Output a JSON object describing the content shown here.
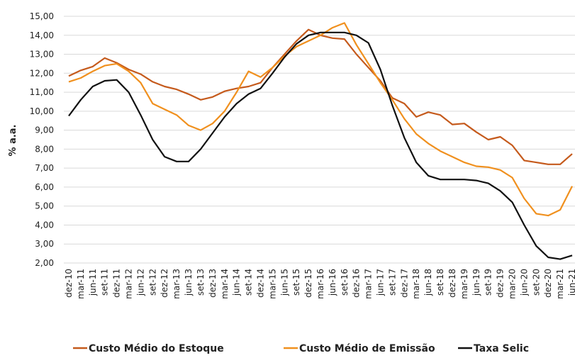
{
  "chart_data": {
    "type": "line",
    "y_label": "% a.a.",
    "categories": [
      "dez-10",
      "mar-11",
      "jun-11",
      "set-11",
      "dez-11",
      "mar-12",
      "jun-12",
      "set-12",
      "dez-12",
      "mar-13",
      "jun-13",
      "set-13",
      "dez-13",
      "mar-14",
      "jun-14",
      "set-14",
      "dez-14",
      "mar-15",
      "jun-15",
      "set-15",
      "dez-15",
      "mar-16",
      "jun-16",
      "set-16",
      "dez-16",
      "mar-17",
      "jun-17",
      "set-17",
      "dez-17",
      "mar-18",
      "jun-18",
      "set-18",
      "dez-18",
      "mar-19",
      "jun-19",
      "set-19",
      "dez-19",
      "mar-20",
      "jun-20",
      "set-20",
      "dez-20",
      "mar-21",
      "jun-21"
    ],
    "series": [
      {
        "name": "Custo Médio do Estoque",
        "color": "#c55a1c",
        "values": [
          11.85,
          12.15,
          12.35,
          12.8,
          12.55,
          12.2,
          11.95,
          11.55,
          11.3,
          11.15,
          10.9,
          10.6,
          10.75,
          11.05,
          11.2,
          11.3,
          11.5,
          12.3,
          13.0,
          13.7,
          14.3,
          14.0,
          13.85,
          13.8,
          13.0,
          12.3,
          11.6,
          10.7,
          10.4,
          9.7,
          9.95,
          9.8,
          9.3,
          9.35,
          8.9,
          8.5,
          8.65,
          8.2,
          7.4,
          7.3,
          7.2,
          7.2,
          7.75
        ]
      },
      {
        "name": "Custo Médio de Emissão",
        "color": "#f0901e",
        "values": [
          11.55,
          11.75,
          12.1,
          12.4,
          12.5,
          12.1,
          11.5,
          10.4,
          10.1,
          9.8,
          9.25,
          9.0,
          9.35,
          10.0,
          11.0,
          12.1,
          11.8,
          12.3,
          12.9,
          13.4,
          13.7,
          14.0,
          14.4,
          14.65,
          13.5,
          12.5,
          11.5,
          10.6,
          9.6,
          8.8,
          8.3,
          7.9,
          7.6,
          7.3,
          7.1,
          7.05,
          6.9,
          6.5,
          5.4,
          4.6,
          4.5,
          4.8,
          6.05
        ]
      },
      {
        "name": "Taxa Selic",
        "color": "#111111",
        "values": [
          9.75,
          10.6,
          11.3,
          11.6,
          11.65,
          11.0,
          9.8,
          8.5,
          7.6,
          7.35,
          7.35,
          8.0,
          8.85,
          9.7,
          10.4,
          10.9,
          11.2,
          12.0,
          12.85,
          13.55,
          14.0,
          14.15,
          14.15,
          14.15,
          14.0,
          13.6,
          12.2,
          10.3,
          8.6,
          7.3,
          6.6,
          6.4,
          6.4,
          6.4,
          6.35,
          6.2,
          5.8,
          5.2,
          4.0,
          2.9,
          2.3,
          2.2,
          2.4
        ]
      }
    ],
    "ylim": [
      2,
      15
    ],
    "yticks": [
      {
        "value": 2,
        "label": "2,00"
      },
      {
        "value": 3,
        "label": "3,00"
      },
      {
        "value": 4,
        "label": "4,00"
      },
      {
        "value": 5,
        "label": "5,00"
      },
      {
        "value": 6,
        "label": "6,00"
      },
      {
        "value": 7,
        "label": "7,00"
      },
      {
        "value": 8,
        "label": "8,00"
      },
      {
        "value": 9,
        "label": "9,00"
      },
      {
        "value": 10,
        "label": "10,00"
      },
      {
        "value": 11,
        "label": "11,00"
      },
      {
        "value": 12,
        "label": "12,00"
      },
      {
        "value": 13,
        "label": "13,00"
      },
      {
        "value": 14,
        "label": "14,00"
      },
      {
        "value": 15,
        "label": "15,00"
      }
    ],
    "grid": true,
    "legend": "bottom"
  }
}
